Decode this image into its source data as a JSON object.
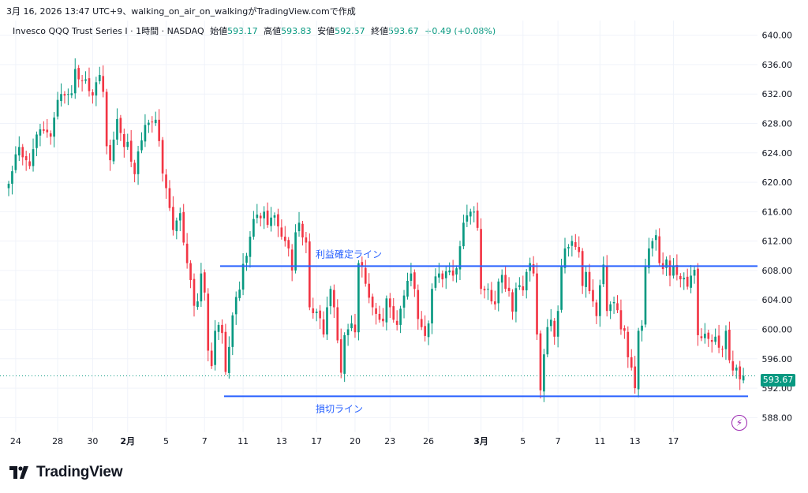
{
  "caption": "3月 16, 2026 13:47 UTC+9、walking_on_air_on_walkingがTradingView.comで作成",
  "legend": {
    "symbol": "Invesco QQQ Trust Series I · 1時間 · NASDAQ",
    "open_label": "始値",
    "open": "593.17",
    "high_label": "高値",
    "high": "593.83",
    "low_label": "安値",
    "low": "592.57",
    "close_label": "終値",
    "close": "593.67",
    "change": "+0.49 (+0.08%)"
  },
  "last_price_label": "593.67",
  "brand": "TradingView",
  "colors": {
    "up": "#089981",
    "down": "#f23645",
    "line": "#2962ff",
    "grid": "#f0f3fa",
    "bolt": "#9c27b0"
  },
  "bolt_icon": "lightning-bolt-icon",
  "chart_data": {
    "type": "candlestick",
    "instrument": "Invesco QQQ Trust Series I",
    "interval": "1時間",
    "exchange": "NASDAQ",
    "ylim": [
      586,
      642
    ],
    "y_ticks": [
      "640.00",
      "636.00",
      "632.00",
      "628.00",
      "624.00",
      "620.00",
      "616.00",
      "612.00",
      "608.00",
      "604.00",
      "600.00",
      "596.00",
      "592.00",
      "588.00"
    ],
    "x_ticks": [
      {
        "label": "24",
        "i": 2,
        "bold": false
      },
      {
        "label": "28",
        "i": 14,
        "bold": false
      },
      {
        "label": "30",
        "i": 24,
        "bold": false
      },
      {
        "label": "2月",
        "i": 34,
        "bold": true
      },
      {
        "label": "5",
        "i": 45,
        "bold": false
      },
      {
        "label": "7",
        "i": 56,
        "bold": false
      },
      {
        "label": "11",
        "i": 67,
        "bold": false
      },
      {
        "label": "13",
        "i": 78,
        "bold": false
      },
      {
        "label": "17",
        "i": 88,
        "bold": false
      },
      {
        "label": "20",
        "i": 99,
        "bold": false
      },
      {
        "label": "23",
        "i": 109,
        "bold": false
      },
      {
        "label": "26",
        "i": 120,
        "bold": false
      },
      {
        "label": "3月",
        "i": 135,
        "bold": true
      },
      {
        "label": "5",
        "i": 147,
        "bold": false
      },
      {
        "label": "7",
        "i": 157,
        "bold": false
      },
      {
        "label": "11",
        "i": 169,
        "bold": false
      },
      {
        "label": "13",
        "i": 179,
        "bold": false
      },
      {
        "label": "17",
        "i": 190,
        "bold": false
      }
    ],
    "levels": [
      {
        "name": "利益確定ライン",
        "price": 608.6
      },
      {
        "name": "損切ライン",
        "price": 590.9
      }
    ],
    "last_price": 593.67,
    "close_series": [
      619.8,
      621.5,
      623.8,
      624.8,
      623.4,
      623.0,
      622.2,
      624.5,
      626.5,
      627.2,
      627.0,
      626.8,
      626.2,
      628.8,
      631.2,
      632.0,
      631.8,
      632.0,
      632.1,
      635.4,
      634.0,
      633.8,
      634.0,
      632.4,
      631.8,
      633.6,
      634.6,
      632.3,
      624.9,
      623.0,
      625.8,
      628.6,
      626.7,
      624.8,
      625.5,
      622.8,
      621.1,
      624.2,
      625.7,
      627.8,
      628.1,
      628.2,
      628.5,
      625.6,
      621.2,
      619.2,
      616.5,
      613.5,
      614.8,
      615.8,
      611.8,
      609.0,
      606.7,
      603.2,
      603.8,
      607.6,
      605.0,
      597.1,
      595.0,
      599.8,
      600.6,
      599.5,
      594.2,
      597.6,
      601.9,
      604.4,
      605.4,
      608.9,
      610.0,
      612.6,
      615.0,
      615.6,
      615.1,
      616.0,
      614.2,
      615.2,
      615.5,
      614.0,
      612.6,
      612.0,
      611.0,
      608.0,
      613.2,
      614.5,
      612.5,
      611.8,
      603.0,
      602.2,
      602.4,
      601.5,
      599.3,
      603.0,
      605.5,
      603.0,
      598.5,
      594.1,
      599.2,
      600.0,
      600.8,
      599.6,
      609.0,
      608.5,
      606.2,
      604.3,
      603.0,
      602.1,
      601.3,
      601.1,
      604.2,
      603.0,
      601.3,
      600.6,
      602.8,
      604.6,
      606.6,
      607.6,
      605.5,
      601.4,
      600.3,
      599.1,
      600.8,
      605.5,
      607.2,
      607.6,
      606.8,
      607.9,
      608.0,
      607.3,
      608.3,
      611.3,
      614.5,
      615.5,
      616.0,
      616.0,
      613.8,
      605.5,
      605.3,
      605.5,
      603.8,
      603.4,
      606.5,
      607.4,
      605.5,
      605.2,
      602.4,
      605.6,
      606.0,
      605.3,
      607.8,
      609.0,
      607.6,
      599.3,
      591.7,
      596.6,
      600.3,
      601.3,
      599.0,
      602.5,
      608.5,
      611.0,
      611.2,
      612.0,
      611.2,
      610.5,
      605.9,
      607.8,
      605.2,
      603.8,
      601.8,
      606.0,
      608.8,
      602.5,
      603.4,
      603.7,
      602.6,
      600.0,
      599.8,
      596.2,
      594.8,
      592.0,
      599.8,
      600.5,
      608.5,
      611.0,
      612.0,
      612.8,
      609.0,
      608.2,
      609.5,
      607.3,
      608.6,
      607.4,
      606.8,
      607.0,
      605.8,
      607.3,
      608.1,
      599.2,
      598.8,
      599.4,
      598.7,
      598.3,
      599.0,
      597.5,
      597.3,
      599.8,
      595.8,
      594.4,
      594.8,
      593.2,
      593.67
    ]
  }
}
